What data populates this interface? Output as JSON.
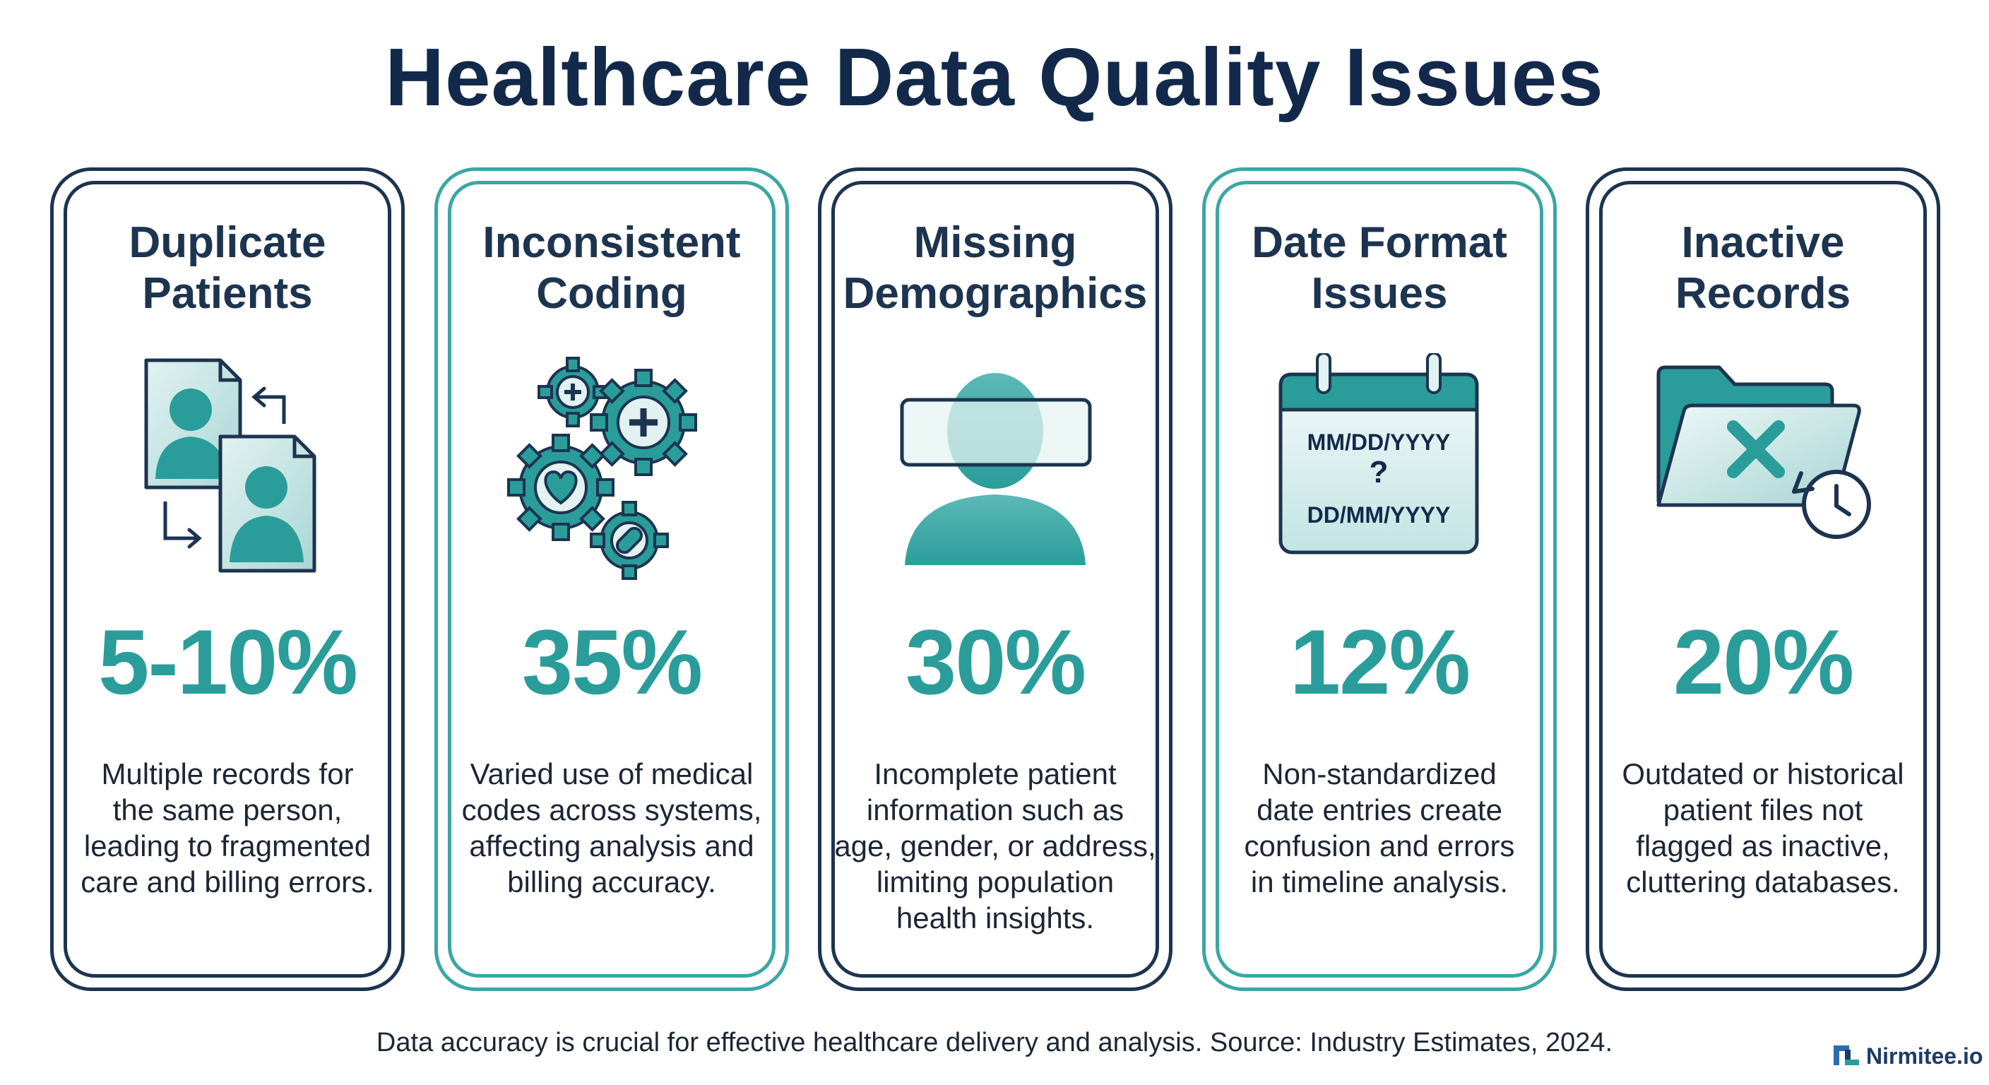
{
  "title": "Healthcare Data Quality Issues",
  "cards": [
    {
      "title": "Duplicate\nPatients",
      "stat": "5-10%",
      "description": "Multiple records for\nthe same person,\nleading to fragmented\ncare and billing errors.",
      "icon": "duplicate-patients-icon",
      "border": "navy"
    },
    {
      "title": "Inconsistent\nCoding",
      "stat": "35%",
      "description": "Varied use of medical\ncodes across systems,\naffecting analysis and\nbilling accuracy.",
      "icon": "gears-icon",
      "border": "teal"
    },
    {
      "title": "Missing\nDemographics",
      "stat": "30%",
      "description": "Incomplete patient\ninformation such as\nage, gender, or address,\nlimiting population\nhealth insights.",
      "icon": "obscured-person-icon",
      "border": "navy"
    },
    {
      "title": "Date Format\nIssues",
      "stat": "12%",
      "description": "Non-standardized\ndate entries create\nconfusion and errors\nin timeline analysis.",
      "icon": "calendar-icon",
      "border": "teal"
    },
    {
      "title": "Inactive\nRecords",
      "stat": "20%",
      "description": "Outdated or historical\npatient files not\nflagged as inactive,\ncluttering databases.",
      "icon": "folder-x-clock-icon",
      "border": "navy"
    }
  ],
  "calendar_formats": {
    "top": "MM/DD/YYYY",
    "mid": "?",
    "bottom": "DD/MM/YYYY"
  },
  "footer": "Data accuracy is crucial for effective healthcare delivery and analysis. Source: Industry Estimates, 2024.",
  "brand": "Nirmitee.io",
  "colors": {
    "navy": "#1d3450",
    "teal": "#2a9d9a",
    "light_teal": "#cfe9e8"
  }
}
